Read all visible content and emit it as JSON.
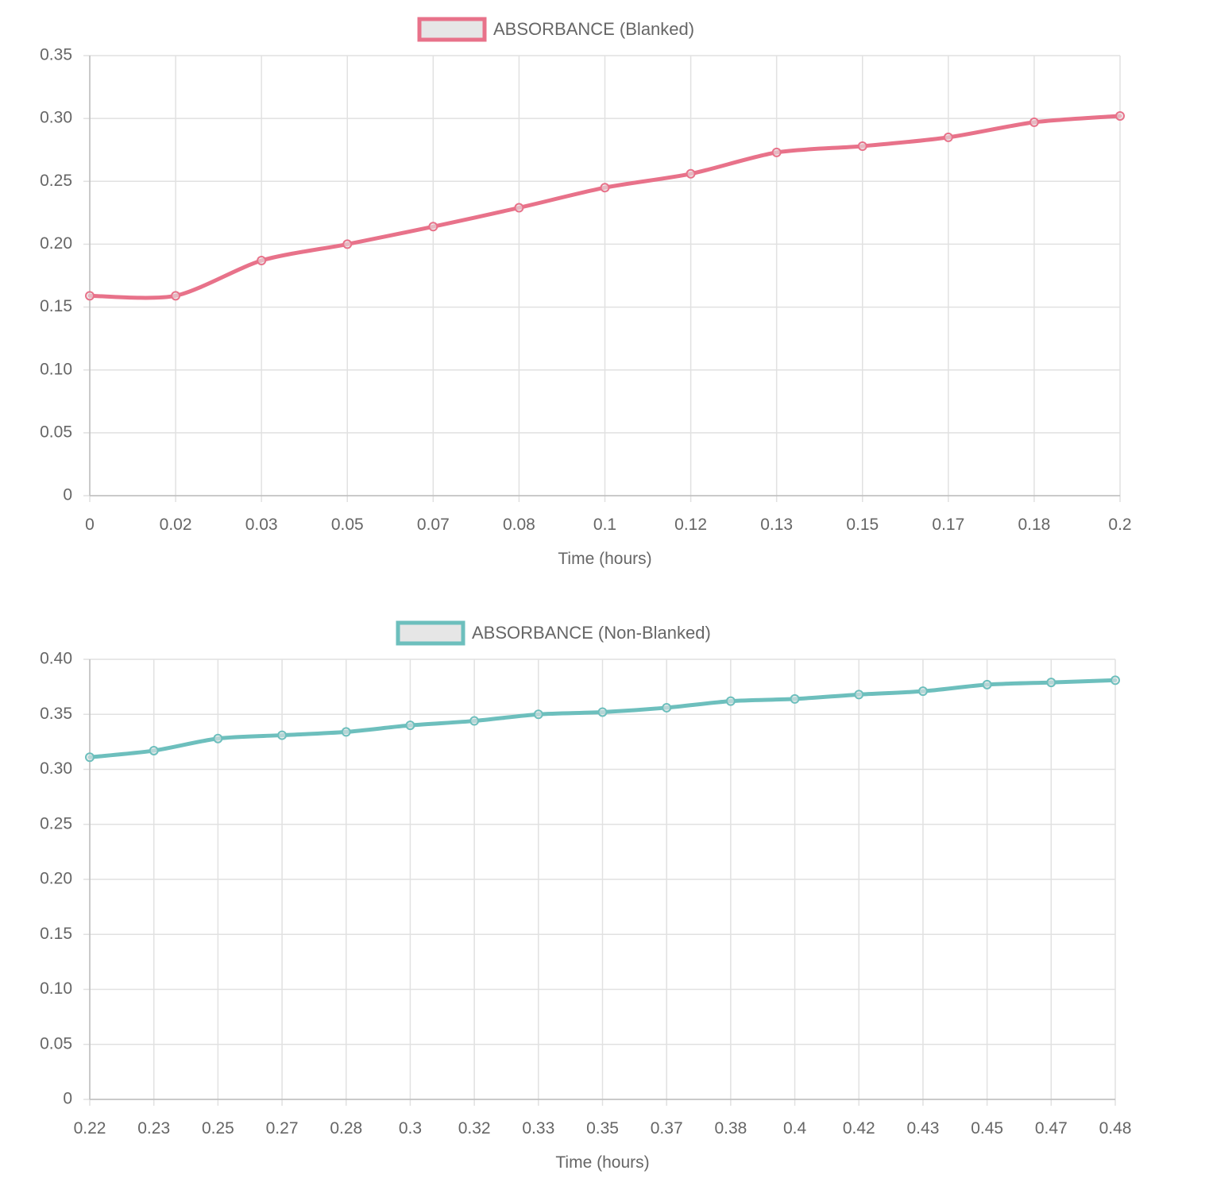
{
  "chart_data": [
    {
      "type": "line",
      "xlabel": "Time (hours)",
      "ylabel": "",
      "ylim": [
        0,
        0.35
      ],
      "y_ticks": [
        "0",
        "0.05",
        "0.10",
        "0.15",
        "0.20",
        "0.25",
        "0.30",
        "0.35"
      ],
      "categories": [
        "0",
        "0.02",
        "0.03",
        "0.05",
        "0.07",
        "0.08",
        "0.1",
        "0.12",
        "0.13",
        "0.15",
        "0.17",
        "0.18",
        "0.2"
      ],
      "grid": true,
      "legend_position": "top",
      "series": [
        {
          "name": "ABSORBANCE (Blanked)",
          "color": "#e8728a",
          "values": [
            0.159,
            0.159,
            0.187,
            0.2,
            0.214,
            0.229,
            0.245,
            0.256,
            0.273,
            0.278,
            0.285,
            0.297,
            0.302
          ]
        }
      ]
    },
    {
      "type": "line",
      "xlabel": "Time (hours)",
      "ylabel": "",
      "ylim": [
        0,
        0.4
      ],
      "y_ticks": [
        "0",
        "0.05",
        "0.10",
        "0.15",
        "0.20",
        "0.25",
        "0.30",
        "0.35",
        "0.40"
      ],
      "categories": [
        "0.22",
        "0.23",
        "0.25",
        "0.27",
        "0.28",
        "0.3",
        "0.32",
        "0.33",
        "0.35",
        "0.37",
        "0.38",
        "0.4",
        "0.42",
        "0.43",
        "0.45",
        "0.47",
        "0.48"
      ],
      "grid": true,
      "legend_position": "top",
      "series": [
        {
          "name": "ABSORBANCE (Non-Blanked)",
          "color": "#6dbfbd",
          "values": [
            0.311,
            0.317,
            0.328,
            0.331,
            0.334,
            0.34,
            0.344,
            0.35,
            0.352,
            0.356,
            0.362,
            0.364,
            0.368,
            0.371,
            0.377,
            0.379,
            0.381
          ]
        }
      ]
    }
  ]
}
